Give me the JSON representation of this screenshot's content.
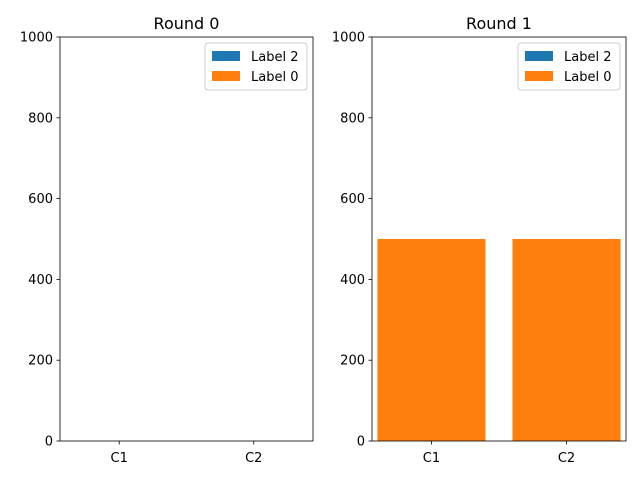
{
  "chart_data": [
    {
      "type": "bar",
      "title": "Round 0",
      "categories": [
        "C1",
        "C2"
      ],
      "ylim": [
        0,
        1000
      ],
      "yticks": [
        0,
        200,
        400,
        600,
        800,
        1000
      ],
      "stacked": true,
      "legend_position": "top-right",
      "grid": false,
      "series": [
        {
          "name": "Label 2",
          "color": "#1f77b4",
          "values": [
            0,
            0
          ]
        },
        {
          "name": "Label 0",
          "color": "#ff7f0e",
          "values": [
            0,
            0
          ]
        }
      ]
    },
    {
      "type": "bar",
      "title": "Round 1",
      "categories": [
        "C1",
        "C2"
      ],
      "ylim": [
        0,
        1000
      ],
      "yticks": [
        0,
        200,
        400,
        600,
        800,
        1000
      ],
      "stacked": true,
      "legend_position": "top-right",
      "grid": false,
      "series": [
        {
          "name": "Label 2",
          "color": "#1f77b4",
          "values": [
            0,
            0
          ]
        },
        {
          "name": "Label 0",
          "color": "#ff7f0e",
          "values": [
            500,
            500
          ]
        }
      ]
    }
  ]
}
